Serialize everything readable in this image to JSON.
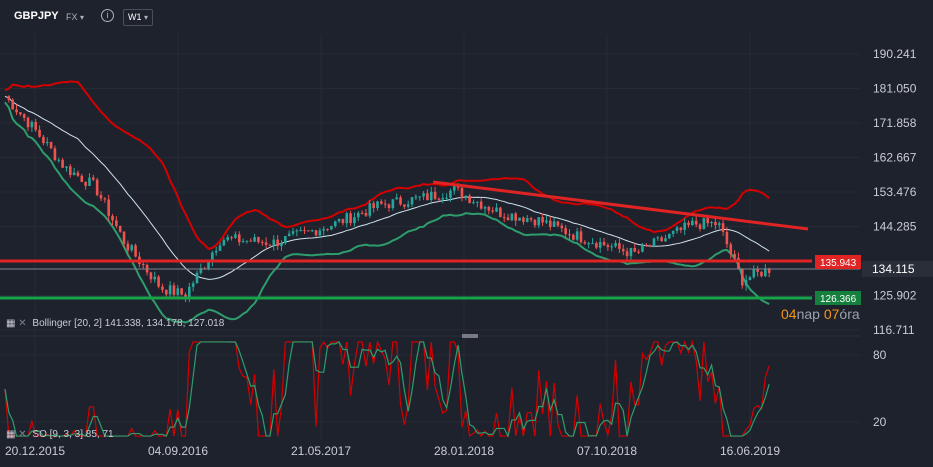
{
  "toolbar": {
    "symbol": "GBPJPY",
    "market": "FX",
    "info_glyph": "i",
    "timeframe": "W1",
    "caret": "▾"
  },
  "price_axis": {
    "ticks": [
      "190.241",
      "181.050",
      "171.858",
      "162.667",
      "153.476",
      "144.285",
      "134.115",
      "125.902",
      "116.711"
    ],
    "current_price": "134.115",
    "resistance_label": "135.943",
    "support_label": "126.366"
  },
  "indicators": {
    "bollinger": {
      "icon": "▦",
      "close": "✕",
      "label": "Bollinger",
      "params": "[20, 2]",
      "upper": "141.338,",
      "middle": "134.178,",
      "lower": "127.018"
    },
    "stochastic": {
      "icon": "▦",
      "close": "✕",
      "label": "SO",
      "params": "[9, 3, 3]",
      "levels": "85, 71"
    }
  },
  "countdown": {
    "n1": "04",
    "u1": "nap",
    "n2": "07",
    "u2": "óra"
  },
  "osc_axis": {
    "ticks": [
      "80",
      "20"
    ]
  },
  "date_axis": {
    "ticks": [
      "20.12.2015",
      "04.09.2016",
      "21.05.2017",
      "28.01.2018",
      "07.10.2018",
      "16.06.2019"
    ]
  },
  "colors": {
    "background": "#1e222d",
    "bullish": "#26a69a",
    "bearish": "#ef5350",
    "bollinger_band": "#d50000",
    "bollinger_lower": "#2e9d6c",
    "resistance": "#e02424",
    "support": "#16a34a"
  }
}
